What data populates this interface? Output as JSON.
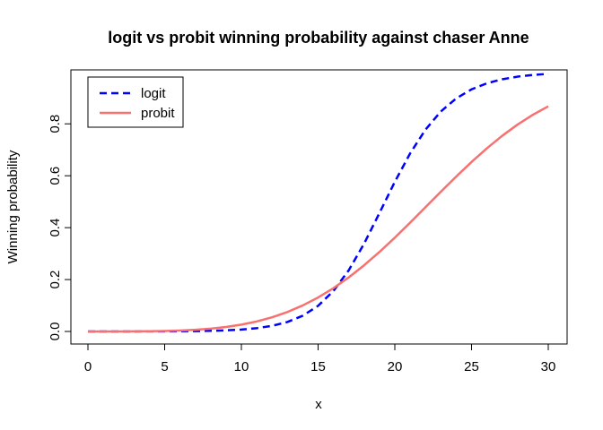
{
  "chart_data": {
    "type": "line",
    "title": "logit vs probit winning probability against chaser Anne",
    "xlabel": "x",
    "ylabel": "Winning probability",
    "xlim": [
      0,
      30
    ],
    "ylim": [
      0,
      0.97
    ],
    "xticks": [
      "0",
      "5",
      "10",
      "15",
      "20",
      "25",
      "30"
    ],
    "yticks": [
      "0.0",
      "0.2",
      "0.4",
      "0.6",
      "0.8"
    ],
    "grid": false,
    "legend_position": "top-left",
    "x": [
      0,
      1,
      2,
      3,
      4,
      5,
      6,
      7,
      8,
      9,
      10,
      11,
      12,
      13,
      14,
      15,
      16,
      17,
      18,
      19,
      20,
      21,
      22,
      23,
      24,
      25,
      26,
      27,
      28,
      29,
      30
    ],
    "series": [
      {
        "name": "logit",
        "color": "#0000ff",
        "style": "dashed",
        "values": [
          0.0,
          0.0001,
          0.0001,
          0.0002,
          0.0003,
          0.0005,
          0.0009,
          0.0015,
          0.0025,
          0.0043,
          0.0074,
          0.0127,
          0.0216,
          0.0365,
          0.0606,
          0.0988,
          0.1561,
          0.2361,
          0.3386,
          0.4565,
          0.5766,
          0.6864,
          0.7778,
          0.8477,
          0.8981,
          0.9329,
          0.9563,
          0.9718,
          0.9819,
          0.9884,
          0.9926
        ]
      },
      {
        "name": "probit",
        "color": "#f87171",
        "style": "solid",
        "values": [
          0.0,
          0.0001,
          0.0002,
          0.0004,
          0.0009,
          0.0019,
          0.0036,
          0.0064,
          0.0108,
          0.0172,
          0.0262,
          0.0385,
          0.0545,
          0.075,
          0.1003,
          0.1309,
          0.1669,
          0.2085,
          0.2551,
          0.3064,
          0.3615,
          0.4194,
          0.4788,
          0.5384,
          0.5969,
          0.6531,
          0.7058,
          0.754,
          0.7972,
          0.835,
          0.8675
        ]
      }
    ]
  }
}
